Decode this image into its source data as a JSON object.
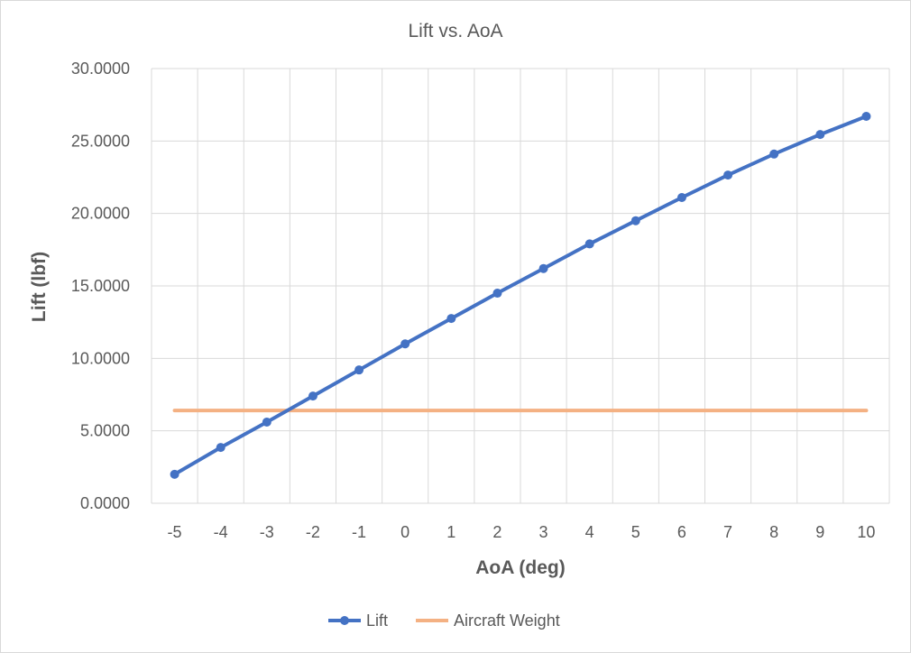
{
  "chart_data": {
    "type": "line",
    "title": "Lift vs. AoA",
    "xlabel": "AoA (deg)",
    "ylabel": "Lift (lbf)",
    "categories": [
      "-5",
      "-4",
      "-3",
      "-2",
      "-1",
      "0",
      "1",
      "2",
      "3",
      "4",
      "5",
      "6",
      "7",
      "8",
      "9",
      "10"
    ],
    "ylim": [
      0,
      30
    ],
    "yticks": [
      "0.0000",
      "5.0000",
      "10.0000",
      "15.0000",
      "20.0000",
      "25.0000",
      "30.0000"
    ],
    "grid": true,
    "legend_position": "bottom",
    "series": [
      {
        "name": "Lift",
        "color": "#4472c4",
        "marker": "circle",
        "values": [
          2.0,
          3.85,
          5.6,
          7.4,
          9.2,
          11.0,
          12.75,
          14.5,
          16.2,
          17.9,
          19.5,
          21.1,
          22.65,
          24.1,
          25.45,
          26.7
        ]
      },
      {
        "name": "Aircraft Weight",
        "color": "#f4b183",
        "marker": "none",
        "values": [
          6.4,
          6.4,
          6.4,
          6.4,
          6.4,
          6.4,
          6.4,
          6.4,
          6.4,
          6.4,
          6.4,
          6.4,
          6.4,
          6.4,
          6.4,
          6.4
        ]
      }
    ]
  }
}
